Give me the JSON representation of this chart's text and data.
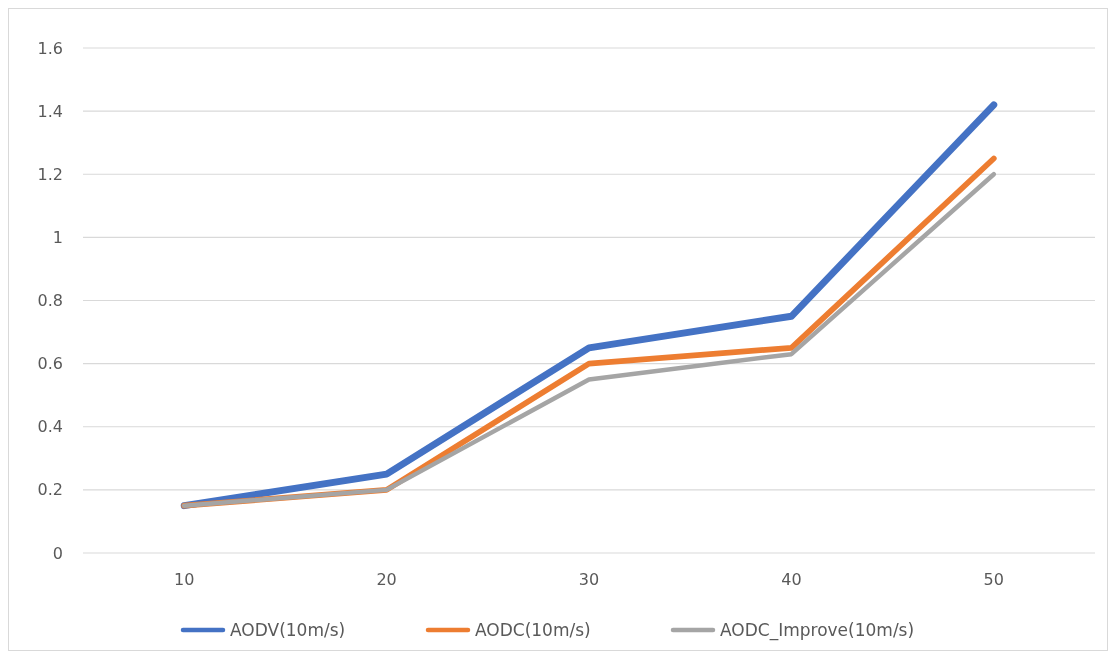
{
  "chart_data": {
    "type": "line",
    "categories": [
      "10",
      "20",
      "30",
      "40",
      "50"
    ],
    "series": [
      {
        "name": "AODV(10m/s)",
        "color": "#4472c4",
        "values": [
          0.15,
          0.25,
          0.65,
          0.75,
          1.42
        ]
      },
      {
        "name": "AODC(10m/s)",
        "color": "#ed7d31",
        "values": [
          0.15,
          0.2,
          0.6,
          0.65,
          1.25
        ]
      },
      {
        "name": "AODC_Improve(10m/s)",
        "color": "#a5a5a5",
        "values": [
          0.15,
          0.2,
          0.55,
          0.63,
          1.2
        ]
      }
    ],
    "ylim": [
      0,
      1.6
    ],
    "yticks": [
      0,
      0.2,
      0.4,
      0.6,
      0.8,
      1,
      1.2,
      1.4,
      1.6
    ],
    "grid": "y",
    "legend": "bottom",
    "marker": "none",
    "line_style": "solid"
  }
}
